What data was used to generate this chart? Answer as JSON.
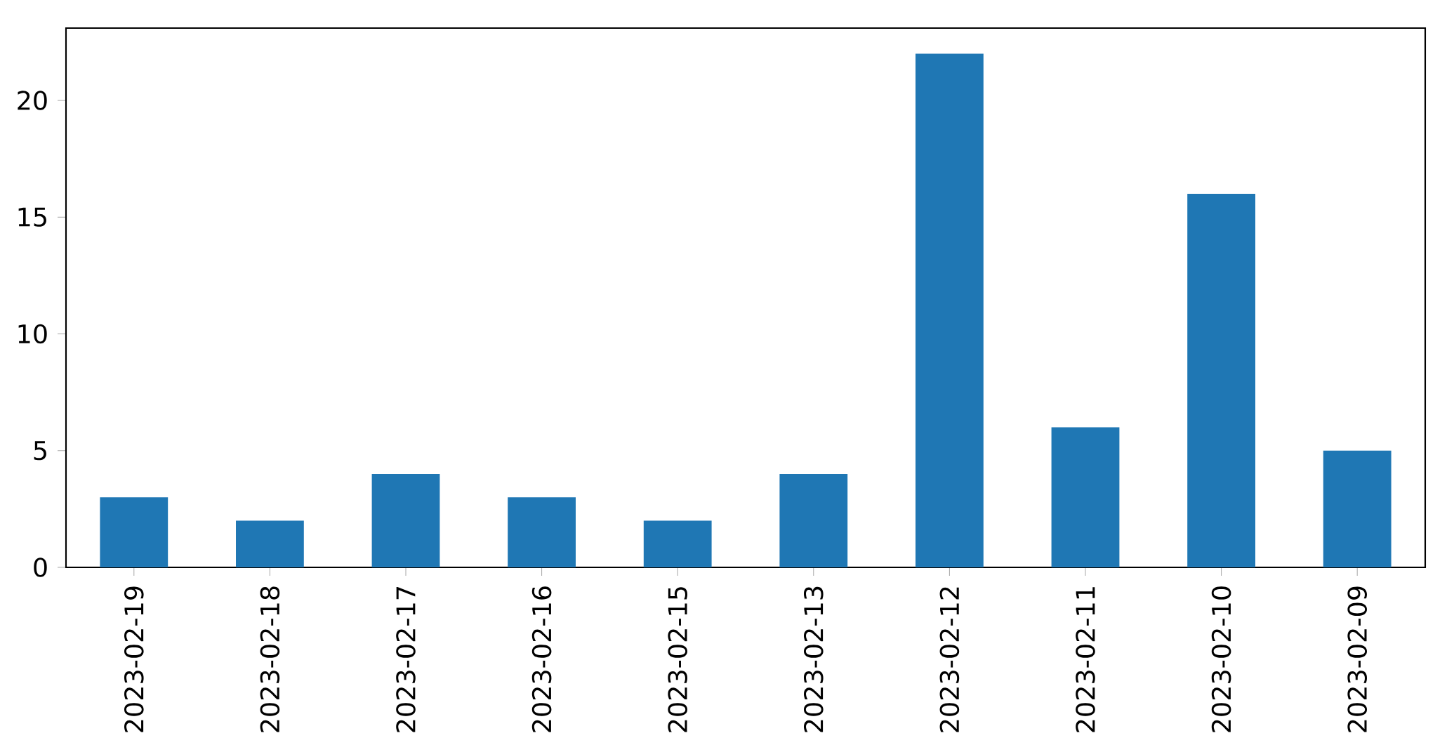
{
  "chart_data": {
    "type": "bar",
    "categories": [
      "2023-02-19",
      "2023-02-18",
      "2023-02-17",
      "2023-02-16",
      "2023-02-15",
      "2023-02-13",
      "2023-02-12",
      "2023-02-11",
      "2023-02-10",
      "2023-02-09"
    ],
    "values": [
      3,
      2,
      4,
      3,
      2,
      4,
      22,
      6,
      16,
      5
    ],
    "color": "#1f77b4",
    "ylim": [
      0,
      23.1
    ],
    "yticks": [
      0,
      5,
      10,
      15,
      20
    ]
  }
}
